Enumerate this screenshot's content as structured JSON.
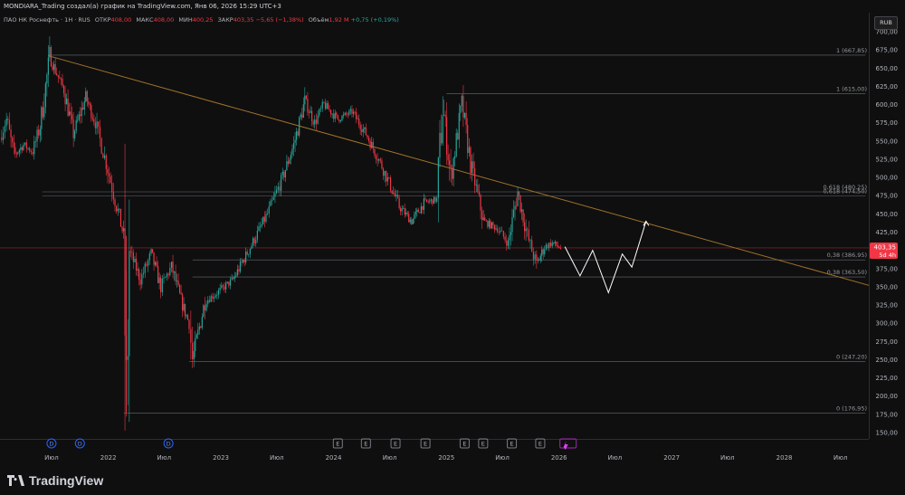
{
  "header": {
    "caption": "MONDIARA_Trading создал(а) график на TradingView.com, Янв 06, 2026 15:29 UTC+3"
  },
  "legend": {
    "symbol": "ПАО НК Роснефть · 1Н · RUS",
    "open_label": "ОТКР",
    "open_value": "408,00",
    "high_label": "МАКС",
    "high_value": "408,00",
    "low_label": "МИН",
    "low_value": "400,25",
    "close_label": "ЗАКР",
    "close_value": "403,35",
    "change": "−5,65 (−1,38%)",
    "volume_label": "Объём",
    "volume_value": "1,92 M",
    "volume_change": "+0,75 (+0,19%)"
  },
  "currency_button": "RUB",
  "price_badge": {
    "price": "403,35",
    "countdown": "5d 4h"
  },
  "fib_levels": [
    {
      "label": "1 (667,85)",
      "price": 667.85
    },
    {
      "label": "1 (615,00)",
      "price": 615.0
    },
    {
      "label": "0,618 (480,25)",
      "price": 480.25
    },
    {
      "label": "0,618 (474,50)",
      "price": 474.5
    },
    {
      "label": "0,38 (386,95)",
      "price": 386.95
    },
    {
      "label": "0,38 (363,50)",
      "price": 363.5
    },
    {
      "label": "0 (247,20)",
      "price": 247.2
    },
    {
      "label": "0 (176,95)",
      "price": 176.95
    }
  ],
  "event_markers": {
    "dividends": [
      "D",
      "D",
      "D"
    ],
    "earnings": [
      "E",
      "E",
      "E",
      "E",
      "E",
      "E",
      "E",
      "E"
    ]
  },
  "brand": "TradingView",
  "colors": {
    "background": "#0f0f0f",
    "up": "#26a69a",
    "down": "#f23645",
    "trendline": "#a0722a",
    "fib_line": "#787b86",
    "price_line": "#f23645",
    "forecast_path": "#ffffff"
  },
  "chart_data": {
    "type": "candlestick",
    "title": "ПАО НК Роснефть · 1Н · RUS",
    "currency": "RUB",
    "y_axis_labels": [
      "700,00",
      "675,00",
      "650,00",
      "625,00",
      "600,00",
      "575,00",
      "550,00",
      "525,00",
      "500,00",
      "475,00",
      "450,00",
      "425,00",
      "400,00",
      "375,00",
      "350,00",
      "325,00",
      "300,00",
      "275,00",
      "250,00",
      "225,00",
      "200,00",
      "175,00",
      "150,00"
    ],
    "ylim": [
      137,
      710
    ],
    "x_axis_labels": [
      "Июл",
      "2022",
      "Июл",
      "2023",
      "Июл",
      "2024",
      "Июл",
      "2025",
      "Июл",
      "2026",
      "Июл",
      "2027",
      "Июл",
      "2028",
      "Июл"
    ],
    "xlim": [
      "2021-01-15",
      "2028-10-01"
    ],
    "last_price": 403.35,
    "trendline": {
      "from": {
        "date": "2021-06-20",
        "price": 667
      },
      "to": {
        "date": "2028-10-01",
        "price": 352
      }
    },
    "forecast_path": [
      {
        "date": "2026-01-20",
        "price": 405
      },
      {
        "date": "2026-03-10",
        "price": 365
      },
      {
        "date": "2026-04-20",
        "price": 400
      },
      {
        "date": "2026-06-10",
        "price": 342
      },
      {
        "date": "2026-07-25",
        "price": 395
      },
      {
        "date": "2026-08-25",
        "price": 377
      },
      {
        "date": "2026-10-10",
        "price": 440
      }
    ],
    "price_path": [
      {
        "date": "2021-01-15",
        "price": 555
      },
      {
        "date": "2021-02-05",
        "price": 580
      },
      {
        "date": "2021-03-01",
        "price": 530
      },
      {
        "date": "2021-04-01",
        "price": 545
      },
      {
        "date": "2021-05-01",
        "price": 535
      },
      {
        "date": "2021-05-25",
        "price": 570
      },
      {
        "date": "2021-06-25",
        "price": 665
      },
      {
        "date": "2021-08-10",
        "price": 620
      },
      {
        "date": "2021-09-10",
        "price": 560
      },
      {
        "date": "2021-10-20",
        "price": 610
      },
      {
        "date": "2021-11-20",
        "price": 575
      },
      {
        "date": "2021-12-25",
        "price": 520
      },
      {
        "date": "2022-02-20",
        "price": 420
      },
      {
        "date": "2022-02-28",
        "price": 176.95
      },
      {
        "date": "2022-03-10",
        "price": 400
      },
      {
        "date": "2022-04-15",
        "price": 360
      },
      {
        "date": "2022-05-20",
        "price": 395
      },
      {
        "date": "2022-06-20",
        "price": 350
      },
      {
        "date": "2022-07-25",
        "price": 378
      },
      {
        "date": "2022-08-25",
        "price": 330
      },
      {
        "date": "2022-09-20",
        "price": 300
      },
      {
        "date": "2022-10-01",
        "price": 250
      },
      {
        "date": "2022-11-10",
        "price": 330
      },
      {
        "date": "2022-12-15",
        "price": 340
      },
      {
        "date": "2023-02-10",
        "price": 360
      },
      {
        "date": "2023-04-01",
        "price": 400
      },
      {
        "date": "2023-06-01",
        "price": 450
      },
      {
        "date": "2023-07-20",
        "price": 500
      },
      {
        "date": "2023-08-25",
        "price": 545
      },
      {
        "date": "2023-09-30",
        "price": 605
      },
      {
        "date": "2023-11-01",
        "price": 575
      },
      {
        "date": "2023-12-01",
        "price": 600
      },
      {
        "date": "2024-01-15",
        "price": 580
      },
      {
        "date": "2024-03-01",
        "price": 590
      },
      {
        "date": "2024-04-15",
        "price": 560
      },
      {
        "date": "2024-06-01",
        "price": 520
      },
      {
        "date": "2024-08-01",
        "price": 460
      },
      {
        "date": "2024-09-10",
        "price": 440
      },
      {
        "date": "2024-10-20",
        "price": 465
      },
      {
        "date": "2024-12-01",
        "price": 470
      },
      {
        "date": "2024-12-20",
        "price": 600
      },
      {
        "date": "2025-01-15",
        "price": 500
      },
      {
        "date": "2025-02-20",
        "price": 600
      },
      {
        "date": "2025-03-20",
        "price": 520
      },
      {
        "date": "2025-05-01",
        "price": 440
      },
      {
        "date": "2025-06-15",
        "price": 430
      },
      {
        "date": "2025-07-20",
        "price": 410
      },
      {
        "date": "2025-08-20",
        "price": 480
      },
      {
        "date": "2025-09-20",
        "price": 420
      },
      {
        "date": "2025-10-20",
        "price": 380
      },
      {
        "date": "2025-11-15",
        "price": 405
      },
      {
        "date": "2025-12-10",
        "price": 410
      },
      {
        "date": "2026-01-06",
        "price": 403.35
      }
    ]
  }
}
